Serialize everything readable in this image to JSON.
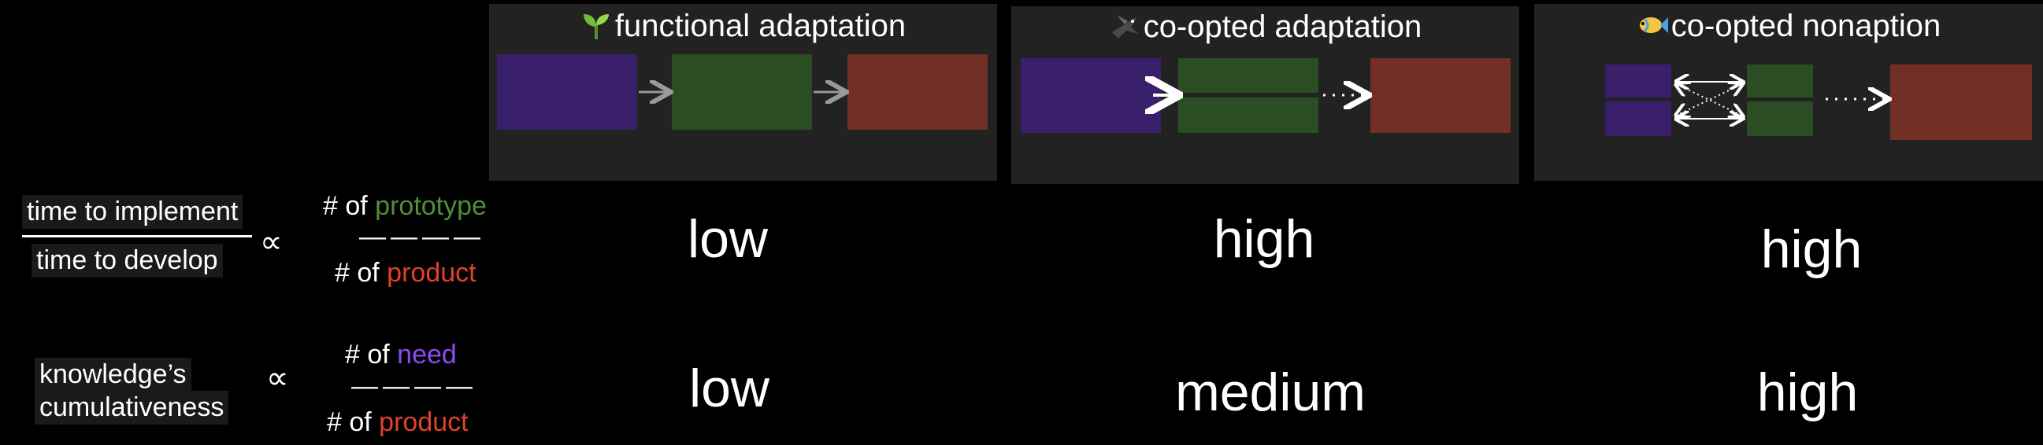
{
  "colors": {
    "need": "#3a1f6b",
    "prototype": "#2b4d23",
    "product": "#722f25",
    "panel": "#222222",
    "prototype_text": "#4f8f3a",
    "product_text": "#e0412e",
    "need_text": "#8b4cf0"
  },
  "panels": [
    {
      "title": "functional adaptation",
      "icon": "seedling-icon"
    },
    {
      "title": "co-opted adaptation",
      "icon": "bird-icon"
    },
    {
      "title": "co-opted nonaption",
      "icon": "fish-icon"
    }
  ],
  "row1": {
    "numerator": "time to implement",
    "denominator": "time to develop",
    "propto": "∝",
    "top_prefix": "# of ",
    "top_term": "prototype",
    "dash": "————",
    "bottom_prefix": "# of ",
    "bottom_term": "product",
    "values": [
      "low",
      "high",
      "high"
    ]
  },
  "row2": {
    "label_line1": "knowledge’s",
    "label_line2": "cumulativeness",
    "propto": "∝",
    "top_prefix": "# of ",
    "top_term": "need",
    "dash": "————",
    "bottom_prefix": "# of ",
    "bottom_term": "product",
    "values": [
      "low",
      "medium",
      "high"
    ]
  }
}
